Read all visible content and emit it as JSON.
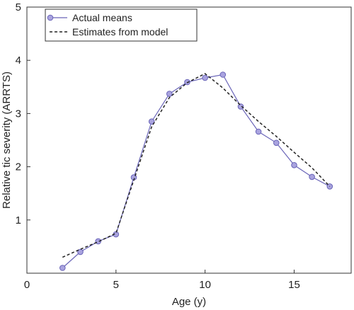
{
  "chart_data": {
    "type": "line",
    "xlabel": "Age (y)",
    "ylabel": "Relative tic severity (ARRTS)",
    "xlim": [
      0,
      18.2
    ],
    "ylim": [
      0,
      5
    ],
    "x_ticks": [
      0,
      5,
      10,
      15
    ],
    "y_ticks": [
      1,
      2,
      3,
      4,
      5
    ],
    "legend_position": "top-left",
    "grid": false,
    "series": [
      {
        "name": "Actual means",
        "style": "line-markers",
        "color": "#6a65b8",
        "marker_fill": "#a9a3df",
        "x": [
          2,
          3,
          4,
          5,
          6,
          7,
          8,
          9,
          10,
          11,
          12,
          13,
          14,
          15,
          16,
          17
        ],
        "y": [
          0.1,
          0.4,
          0.6,
          0.73,
          1.8,
          2.85,
          3.37,
          3.59,
          3.67,
          3.73,
          3.13,
          2.66,
          2.45,
          2.03,
          1.81,
          1.63
        ]
      },
      {
        "name": "Estimates from model",
        "style": "dashed",
        "color": "#222222",
        "x": [
          2,
          3,
          4,
          5,
          6,
          7,
          8,
          9,
          10,
          11,
          12,
          13,
          14,
          15,
          16,
          17
        ],
        "y": [
          0.3,
          0.45,
          0.59,
          0.75,
          1.75,
          2.75,
          3.3,
          3.58,
          3.75,
          3.48,
          3.15,
          2.85,
          2.57,
          2.27,
          1.98,
          1.63
        ]
      }
    ]
  }
}
